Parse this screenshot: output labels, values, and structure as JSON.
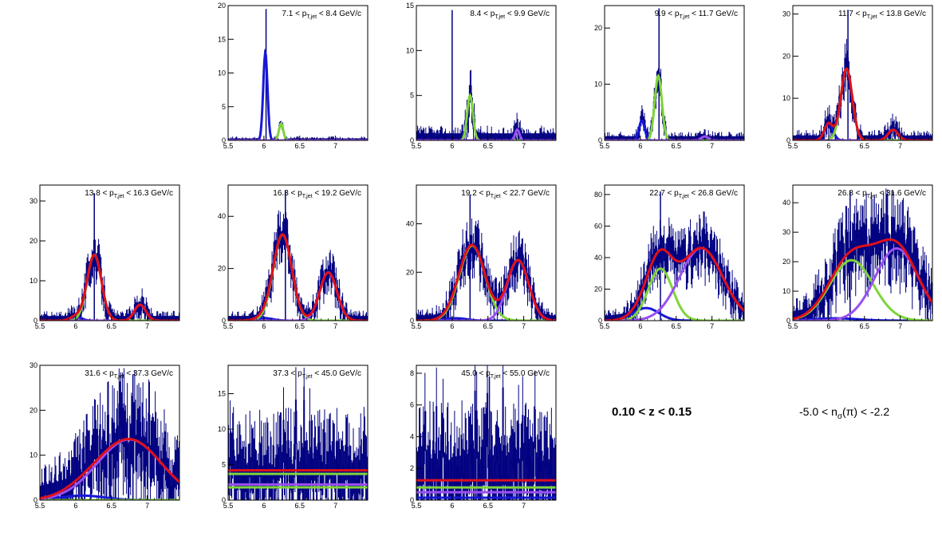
{
  "colors": {
    "data": "#000080",
    "total_fit": "#e0101a",
    "pion": "#7fd43a",
    "proton": "#9a4ff0",
    "kaon": "#1818d8",
    "frame": "#000000"
  },
  "labels": {
    "z_range": "0.10 < z < 0.15",
    "nsigma_range": "-5.0 < n_σ(π) < -2.2",
    "nsigma_prefix": "-5.0 < n",
    "nsigma_sub": "σ",
    "nsigma_suffix": "(π) < -2.2"
  },
  "chart_data": [
    {
      "type": "line",
      "panel": 1,
      "label_pre": "7.1 < p",
      "label_sub": "T,jet",
      "label_post": " < 8.4 GeV/c",
      "xlim": [
        5.5,
        7.45
      ],
      "ylim": [
        0,
        20
      ],
      "yticks": [
        0,
        5,
        10,
        15,
        20
      ],
      "xticks": [
        5.5,
        6,
        6.5,
        7
      ],
      "gauss": [
        {
          "series": "kaon",
          "mu": 6.02,
          "sigma": 0.03,
          "amp": 13.0
        },
        {
          "series": "pion",
          "mu": 6.24,
          "sigma": 0.03,
          "amp": 2.5
        },
        {
          "series": "proton",
          "mu": 6.9,
          "sigma": 0.04,
          "amp": 0.0
        }
      ],
      "bg": 0,
      "noise": 0.5,
      "spike": [
        6.03,
        19.5
      ],
      "total": false
    },
    {
      "type": "line",
      "panel": 2,
      "label_pre": "8.4 < p",
      "label_sub": "T,jet",
      "label_post": " < 9.9 GeV/c",
      "xlim": [
        5.5,
        7.45
      ],
      "ylim": [
        0,
        15
      ],
      "yticks": [
        0,
        5,
        10,
        15
      ],
      "xticks": [
        5.5,
        6,
        6.5,
        7
      ],
      "gauss": [
        {
          "series": "kaon",
          "mu": 6.02,
          "sigma": 0.03,
          "amp": 0.0
        },
        {
          "series": "pion",
          "mu": 6.25,
          "sigma": 0.04,
          "amp": 5.0
        },
        {
          "series": "proton",
          "mu": 6.91,
          "sigma": 0.03,
          "amp": 1.2
        }
      ],
      "bg": 0,
      "noise": 1.5,
      "spike": [
        6.0,
        14.5
      ],
      "total": false
    },
    {
      "type": "line",
      "panel": 3,
      "label_pre": "9.9 < p",
      "label_sub": "T,jet",
      "label_post": " < 11.7 GeV/c",
      "xlim": [
        5.5,
        7.45
      ],
      "ylim": [
        0,
        24
      ],
      "yticks": [
        0,
        10,
        20
      ],
      "xticks": [
        5.5,
        6,
        6.5,
        7
      ],
      "gauss": [
        {
          "series": "kaon",
          "mu": 6.02,
          "sigma": 0.04,
          "amp": 3.5
        },
        {
          "series": "pion",
          "mu": 6.25,
          "sigma": 0.05,
          "amp": 11.5
        },
        {
          "series": "proton",
          "mu": 6.9,
          "sigma": 0.05,
          "amp": 0.7
        }
      ],
      "bg": 0,
      "noise": 1.5,
      "spike": [
        6.26,
        23.5
      ],
      "total": false
    },
    {
      "type": "line",
      "panel": 4,
      "label_pre": "11.7 < p",
      "label_sub": "T,jet",
      "label_post": " < 13.8 GeV/c",
      "xlim": [
        5.5,
        7.45
      ],
      "ylim": [
        0,
        32
      ],
      "yticks": [
        0,
        10,
        20,
        30
      ],
      "xticks": [
        5.5,
        6,
        6.5,
        7
      ],
      "gauss": [
        {
          "series": "kaon",
          "mu": 6.0,
          "sigma": 0.06,
          "amp": 4.0
        },
        {
          "series": "pion",
          "mu": 6.25,
          "sigma": 0.08,
          "amp": 17.0
        },
        {
          "series": "proton",
          "mu": 6.9,
          "sigma": 0.07,
          "amp": 2.5
        }
      ],
      "bg": 0,
      "noise": 2.5,
      "spike": [
        6.27,
        31
      ],
      "total": true
    },
    {
      "type": "line",
      "panel": 5,
      "label_pre": "13.8 < p",
      "label_sub": "T,jet",
      "label_post": " < 16.3 GeV/c",
      "xlim": [
        5.5,
        7.45
      ],
      "ylim": [
        0,
        34
      ],
      "yticks": [
        0,
        10,
        20,
        30
      ],
      "xticks": [
        5.5,
        6,
        6.5,
        7
      ],
      "gauss": [
        {
          "series": "kaon",
          "mu": 6.0,
          "sigma": 0.08,
          "amp": 1.0
        },
        {
          "series": "pion",
          "mu": 6.26,
          "sigma": 0.1,
          "amp": 16.5
        },
        {
          "series": "proton",
          "mu": 6.9,
          "sigma": 0.08,
          "amp": 4.0
        }
      ],
      "bg": 0,
      "noise": 2.5,
      "spike": [
        6.26,
        32
      ],
      "total": true
    },
    {
      "type": "line",
      "panel": 6,
      "label_pre": "16.3 < p",
      "label_sub": "T,jet",
      "label_post": " < 19.2 GeV/c",
      "xlim": [
        5.5,
        7.45
      ],
      "ylim": [
        0,
        52
      ],
      "yticks": [
        0,
        20,
        40
      ],
      "xticks": [
        5.5,
        6,
        6.5,
        7
      ],
      "gauss": [
        {
          "series": "kaon",
          "mu": 6.0,
          "sigma": 0.12,
          "amp": 1.0
        },
        {
          "series": "pion",
          "mu": 6.26,
          "sigma": 0.13,
          "amp": 33.0
        },
        {
          "series": "proton",
          "mu": 6.9,
          "sigma": 0.12,
          "amp": 18.5
        }
      ],
      "bg": 0,
      "noise": 4,
      "spike": [
        6.3,
        50
      ],
      "total": true
    },
    {
      "type": "line",
      "panel": 7,
      "label_pre": "19.2 < p",
      "label_sub": "T,jet",
      "label_post": " < 22.7 GeV/c",
      "xlim": [
        5.5,
        7.45
      ],
      "ylim": [
        0,
        56
      ],
      "yticks": [
        0,
        20,
        40
      ],
      "xticks": [
        5.5,
        6,
        6.5,
        7
      ],
      "gauss": [
        {
          "series": "kaon",
          "mu": 6.05,
          "sigma": 0.15,
          "amp": 1.0
        },
        {
          "series": "pion",
          "mu": 6.28,
          "sigma": 0.18,
          "amp": 31.0
        },
        {
          "series": "proton",
          "mu": 6.92,
          "sigma": 0.15,
          "amp": 25.0
        }
      ],
      "bg": 0,
      "noise": 5,
      "spike": [
        6.25,
        52
      ],
      "total": true
    },
    {
      "type": "line",
      "panel": 8,
      "label_pre": "22.7 < p",
      "label_sub": "T,jet",
      "label_post": " < 26.8 GeV/c",
      "xlim": [
        5.5,
        7.45
      ],
      "ylim": [
        0,
        86
      ],
      "yticks": [
        0,
        20,
        40,
        60,
        80
      ],
      "xticks": [
        5.5,
        6,
        6.5,
        7
      ],
      "gauss": [
        {
          "series": "kaon",
          "mu": 6.08,
          "sigma": 0.18,
          "amp": 8.0
        },
        {
          "series": "pion",
          "mu": 6.28,
          "sigma": 0.17,
          "amp": 33.0
        },
        {
          "series": "proton",
          "mu": 6.85,
          "sigma": 0.3,
          "amp": 46.0
        }
      ],
      "bg": 0,
      "noise": 8,
      "spike": [
        6.28,
        82
      ],
      "total": true
    },
    {
      "type": "line",
      "panel": 9,
      "label_pre": "26.8 < p",
      "label_sub": "T,jet",
      "label_post": " < 31.6 GeV/c",
      "xlim": [
        5.5,
        7.45
      ],
      "ylim": [
        0,
        46
      ],
      "yticks": [
        0,
        10,
        20,
        30,
        40
      ],
      "xticks": [
        5.5,
        6,
        6.5,
        7
      ],
      "gauss": [
        {
          "series": "kaon",
          "mu": 6.1,
          "sigma": 0.3,
          "amp": 0.8
        },
        {
          "series": "pion",
          "mu": 6.32,
          "sigma": 0.3,
          "amp": 20.5
        },
        {
          "series": "proton",
          "mu": 6.95,
          "sigma": 0.3,
          "amp": 24.5
        }
      ],
      "bg": 0,
      "noise": 6,
      "spike": [
        6.3,
        44
      ],
      "total": true
    },
    {
      "type": "line",
      "panel": 10,
      "label_pre": "31.6 < p",
      "label_sub": "T,jet",
      "label_post": " < 37.3 GeV/c",
      "xlim": [
        5.5,
        7.45
      ],
      "ylim": [
        0,
        30
      ],
      "yticks": [
        0,
        10,
        20,
        30
      ],
      "xticks": [
        5.5,
        6,
        6.5,
        7
      ],
      "gauss": [
        {
          "series": "kaon",
          "mu": 6.1,
          "sigma": 0.3,
          "amp": 1.0
        },
        {
          "series": "pion",
          "mu": 6.3,
          "sigma": 0.3,
          "amp": 0.0
        },
        {
          "series": "proton",
          "mu": 6.75,
          "sigma": 0.45,
          "amp": 13.5
        }
      ],
      "bg": 0,
      "noise": 6,
      "spike": [
        6.8,
        28
      ],
      "total": true
    },
    {
      "type": "line",
      "panel": 11,
      "label_pre": "37.3 < p",
      "label_sub": "T,jet",
      "label_post": " < 45.0 GeV/c",
      "xlim": [
        5.5,
        7.45
      ],
      "ylim": [
        0,
        19
      ],
      "yticks": [
        0,
        5,
        10,
        15
      ],
      "xticks": [
        5.5,
        6,
        6.5,
        7
      ],
      "flat": [
        {
          "series": "total_fit",
          "y": 4.2
        },
        {
          "series": "pion",
          "y": 3.7
        },
        {
          "series": "proton",
          "y": 2.2
        },
        {
          "series": "pion",
          "y": 1.8
        }
      ],
      "noise": 5,
      "spike": [
        6.56,
        16
      ],
      "total": false
    },
    {
      "type": "line",
      "panel": 12,
      "label_pre": "45.0 < p",
      "label_sub": "T,jet",
      "label_post": " < 55.0 GeV/c",
      "xlim": [
        5.5,
        7.45
      ],
      "ylim": [
        0,
        8.5
      ],
      "yticks": [
        0,
        2,
        4,
        6,
        8
      ],
      "xticks": [
        5.5,
        6,
        6.5,
        7
      ],
      "flat": [
        {
          "series": "total_fit",
          "y": 1.25
        },
        {
          "series": "pion",
          "y": 0.8
        },
        {
          "series": "proton",
          "y": 0.5
        },
        {
          "series": "kaon",
          "y": 0.15
        }
      ],
      "noise": 3,
      "spike": [
        6.52,
        7.8
      ],
      "total": false
    }
  ]
}
